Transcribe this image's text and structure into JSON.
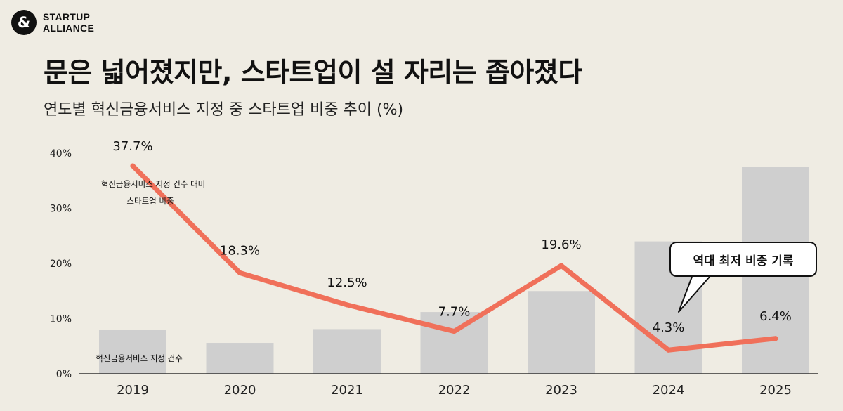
{
  "brand": {
    "mark": "&",
    "line1": "STARTUP",
    "line2": "ALLIANCE"
  },
  "title": "문은 넓어졌지만, 스타트업이 설 자리는 좁아졌다",
  "subtitle": "연도별 혁신금융서비스 지정 중 스타트업 비중 추이 (%)",
  "callout": "역대 최저 비중 기록",
  "colors": {
    "background": "#efece3",
    "bars": "#cfcfcf",
    "line": "#f0705a",
    "text": "#111111"
  },
  "chart_data": {
    "type": "bar+line",
    "categories": [
      "2019",
      "2020",
      "2021",
      "2022",
      "2023",
      "2024",
      "2025"
    ],
    "y_ticks": [
      "0%",
      "10%",
      "20%",
      "30%",
      "40%"
    ],
    "ylim": [
      0,
      40
    ],
    "series": [
      {
        "name": "혁신금융서비스 지정 건수",
        "type": "bar",
        "values": [
          8,
          5.6,
          8.1,
          11.2,
          15,
          24,
          37.5
        ]
      },
      {
        "name": "혁신금융서비스 지정 건수 대비 스타트업 비중",
        "type": "line",
        "values": [
          37.7,
          18.3,
          12.5,
          7.7,
          19.6,
          4.3,
          6.4
        ],
        "labels": [
          "37.7%",
          "18.3%",
          "12.5%",
          "7.7%",
          "19.6%",
          "4.3%",
          "6.4%"
        ]
      }
    ],
    "annotations": {
      "line_note_1": "혁신금융서비스 지정 건수 대비",
      "line_note_2": "스타트업 비중",
      "bar_note": "혁신금융서비스 지정 건수"
    }
  }
}
